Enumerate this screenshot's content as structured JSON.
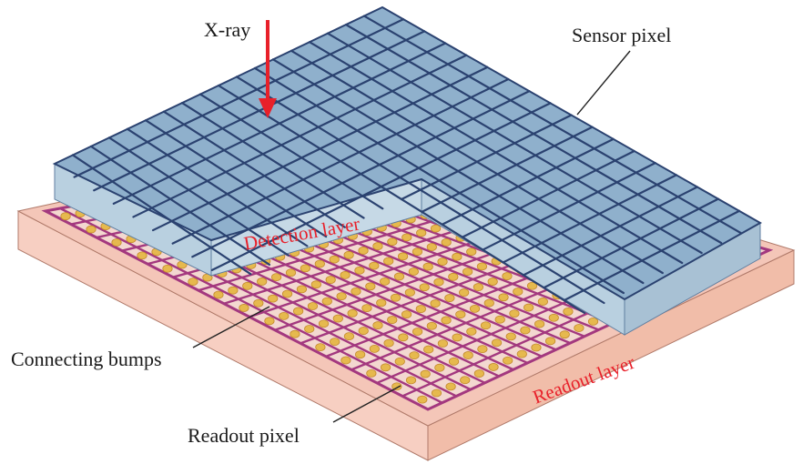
{
  "labels": {
    "xray": "X-ray",
    "sensor_pixel": "Sensor pixel",
    "detection_layer": "Detection layer",
    "connecting_bumps": "Connecting bumps",
    "readout_layer": "Readout layer",
    "readout_pixel": "Readout pixel"
  },
  "colors": {
    "sensor_top": "#8fb0cc",
    "sensor_grid": "#2b4270",
    "sensor_side": "#b9d0e0",
    "readout_top": "#f4c6b8",
    "readout_grid": "#a3387f",
    "readout_cell": "#f3d8d0",
    "bump": "#e6b94e",
    "readout_side": "#f7cfc2",
    "arrow": "#e8202a",
    "layer_label": "#e8202a"
  }
}
